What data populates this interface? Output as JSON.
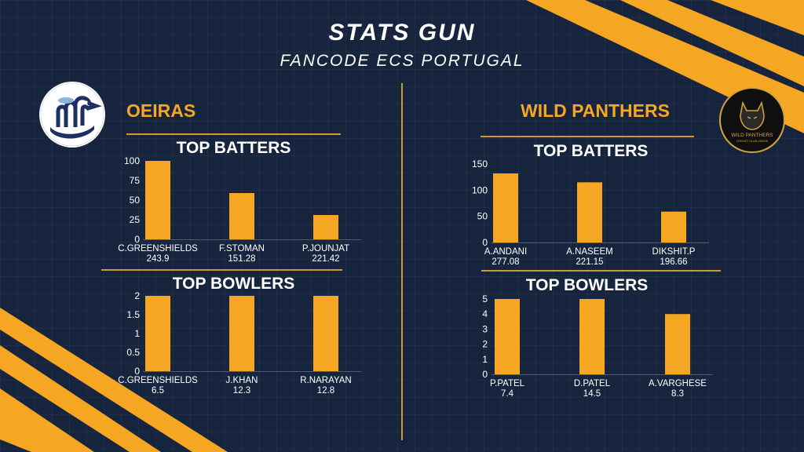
{
  "header": {
    "title": "STATS GUN",
    "subtitle": "FANCODE ECS PORTUGAL"
  },
  "teams": {
    "left": "OEIRAS",
    "right": "WILD PANTHERS"
  },
  "logo_text": {
    "right_main": "WILD PANTHERS",
    "right_sub": "CRICKET CLUB LISBON"
  },
  "colors": {
    "background": "#16253d",
    "accent": "#f5a623",
    "bar": "#f5a623",
    "divider": "#c89a3a"
  },
  "chart_data": [
    {
      "id": "oeiras-batters",
      "type": "bar",
      "title": "TOP BATTERS",
      "categories": [
        "C.GREENSHIELDS",
        "F.STOMAN",
        "P.JOUNJAT"
      ],
      "sublabels": [
        "243.9",
        "151.28",
        "221.42"
      ],
      "values": [
        100,
        59,
        31
      ],
      "ylim": [
        0,
        100
      ],
      "ticks": [
        "0",
        "25",
        "50",
        "75",
        "100"
      ],
      "xlabel": "",
      "ylabel": ""
    },
    {
      "id": "oeiras-bowlers",
      "type": "bar",
      "title": "TOP BOWLERS",
      "categories": [
        "C.GREENSHIELDS",
        "J.KHAN",
        "R.NARAYAN"
      ],
      "sublabels": [
        "6.5",
        "12.3",
        "12.8"
      ],
      "values": [
        2,
        2,
        2
      ],
      "ylim": [
        0,
        2
      ],
      "ticks": [
        "0",
        "0.5",
        "1",
        "1.5",
        "2"
      ],
      "xlabel": "",
      "ylabel": ""
    },
    {
      "id": "panthers-batters",
      "type": "bar",
      "title": "TOP BATTERS",
      "categories": [
        "A.ANDANI",
        "A.NASEEM",
        "DIKSHIT.P"
      ],
      "sublabels": [
        "277.08",
        "221.15",
        "196.66"
      ],
      "values": [
        132,
        115,
        59
      ],
      "ylim": [
        0,
        150
      ],
      "ticks": [
        "0",
        "50",
        "100",
        "150"
      ],
      "xlabel": "",
      "ylabel": ""
    },
    {
      "id": "panthers-bowlers",
      "type": "bar",
      "title": "TOP BOWLERS",
      "categories": [
        "P.PATEL",
        "D.PATEL",
        "A.VARGHESE"
      ],
      "sublabels": [
        "7.4",
        "14.5",
        "8.3"
      ],
      "values": [
        5,
        5,
        4
      ],
      "ylim": [
        0,
        5
      ],
      "ticks": [
        "0",
        "1",
        "2",
        "3",
        "4",
        "5"
      ],
      "xlabel": "",
      "ylabel": ""
    }
  ]
}
